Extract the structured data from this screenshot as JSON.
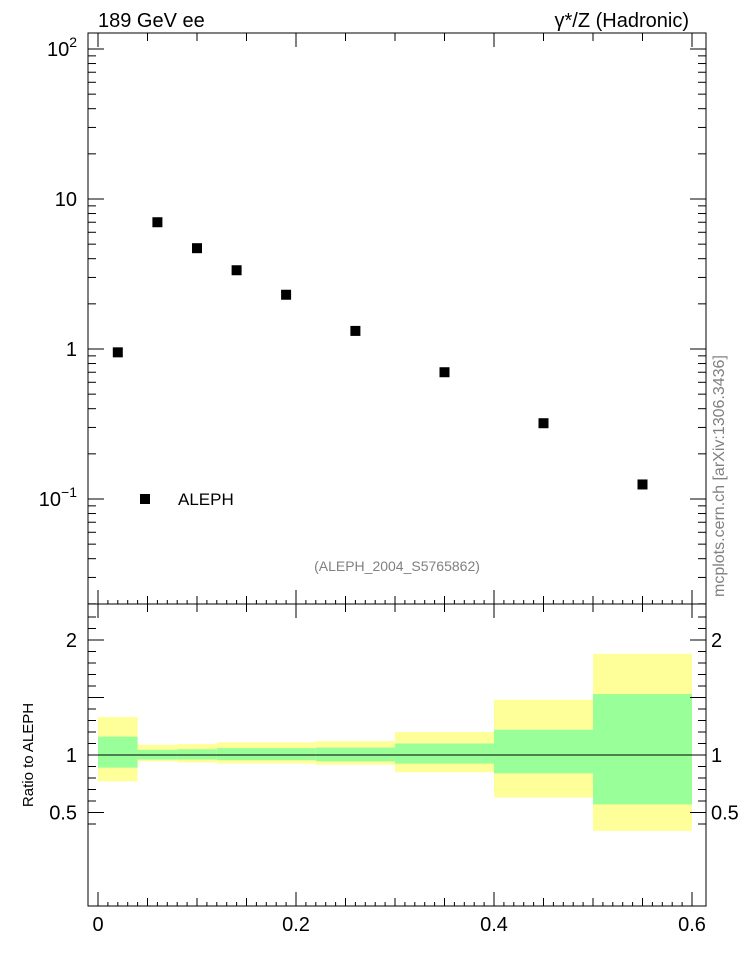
{
  "header": {
    "energy_label": "189 GeV ee",
    "process_label": "γ*/Z (Hadronic)"
  },
  "watermark": "mcplots.cern.ch [arXiv:1306.3436]",
  "analysis_id": "(ALEPH_2004_S5765862)",
  "colors": {
    "band_outer": "#ffff99",
    "band_inner": "#99ff99",
    "marker": "#000000",
    "analysis_text": "#808080"
  },
  "chart_data": [
    {
      "type": "scatter",
      "yscale": "log",
      "ylim": [
        0.025,
        130
      ],
      "xlim": [
        -0.01,
        0.61
      ],
      "ytick_labels": [
        "10^-1",
        "1",
        "10",
        "10^2"
      ],
      "legend": {
        "position": "bottom-left",
        "entries": [
          "ALEPH"
        ]
      },
      "series": [
        {
          "name": "ALEPH",
          "x": [
            0.02,
            0.06,
            0.1,
            0.14,
            0.19,
            0.26,
            0.35,
            0.45,
            0.55
          ],
          "y": [
            0.95,
            7.0,
            4.7,
            3.35,
            2.3,
            1.32,
            0.7,
            0.32,
            0.125
          ]
        }
      ]
    },
    {
      "type": "area",
      "ylabel": "Ratio to ALEPH",
      "ylim": [
        0.34,
        2.27
      ],
      "xlim": [
        -0.01,
        0.61
      ],
      "xtick_labels": [
        "0",
        "0.2",
        "0.4",
        "0.6"
      ],
      "ytick_labels": [
        "0.5",
        "1",
        "2"
      ],
      "reference_line": 1,
      "bins": [
        {
          "x_low": 0.0,
          "x_high": 0.04,
          "outer": [
            0.77,
            1.33
          ],
          "inner": [
            0.89,
            1.16
          ]
        },
        {
          "x_low": 0.04,
          "x_high": 0.08,
          "outer": [
            0.945,
            1.09
          ],
          "inner": [
            0.96,
            1.045
          ]
        },
        {
          "x_low": 0.08,
          "x_high": 0.12,
          "outer": [
            0.935,
            1.095
          ],
          "inner": [
            0.96,
            1.05
          ]
        },
        {
          "x_low": 0.12,
          "x_high": 0.22,
          "outer": [
            0.925,
            1.11
          ],
          "inner": [
            0.955,
            1.06
          ]
        },
        {
          "x_low": 0.22,
          "x_high": 0.3,
          "outer": [
            0.915,
            1.12
          ],
          "inner": [
            0.945,
            1.065
          ]
        },
        {
          "x_low": 0.3,
          "x_high": 0.4,
          "outer": [
            0.85,
            1.2
          ],
          "inner": [
            0.925,
            1.1
          ]
        },
        {
          "x_low": 0.4,
          "x_high": 0.5,
          "outer": [
            0.63,
            1.48
          ],
          "inner": [
            0.84,
            1.22
          ]
        },
        {
          "x_low": 0.5,
          "x_high": 0.6,
          "outer": [
            0.34,
            1.88
          ],
          "inner": [
            0.57,
            1.53
          ]
        }
      ]
    }
  ]
}
